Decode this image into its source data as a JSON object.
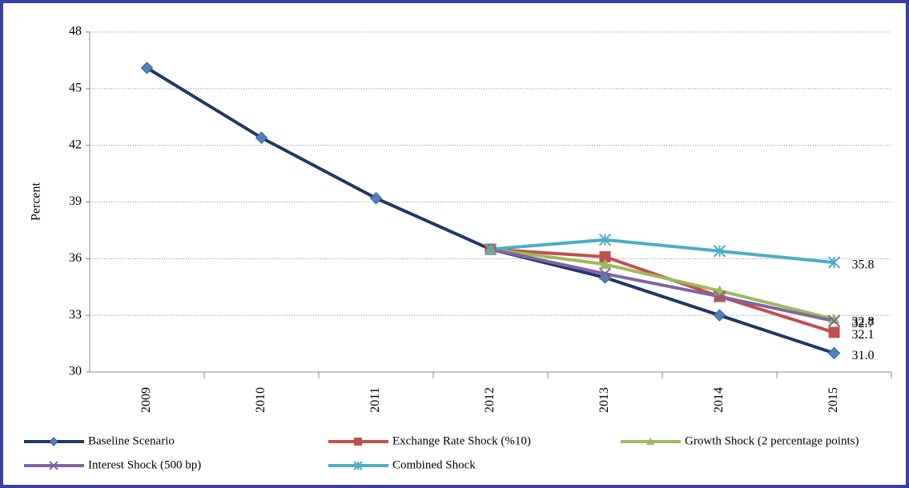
{
  "chart_data": {
    "type": "line",
    "y_label": "Percent",
    "categories": [
      "2009",
      "2010",
      "2011",
      "2012",
      "2013",
      "2014",
      "2015"
    ],
    "series": [
      {
        "name": "Baseline Scenario",
        "color": "#1f3864",
        "marker": "diamond",
        "values": [
          46.1,
          42.4,
          39.2,
          36.5,
          35.0,
          33.0,
          31.0
        ],
        "value_labels": [
          null,
          null,
          null,
          null,
          null,
          null,
          "31.0"
        ]
      },
      {
        "name": "Exchange Rate Shock (%10)",
        "color": "#c0504d",
        "marker": "square",
        "values": [
          null,
          null,
          null,
          36.5,
          36.1,
          34.0,
          32.1
        ],
        "value_labels": [
          null,
          null,
          null,
          null,
          null,
          null,
          "32.1"
        ]
      },
      {
        "name": "Growth Shock (2 percentage points)",
        "color": "#9bbb59",
        "marker": "triangle",
        "values": [
          null,
          null,
          null,
          36.5,
          35.7,
          34.3,
          32.8
        ],
        "value_labels": [
          null,
          null,
          null,
          null,
          null,
          null,
          "32.8"
        ]
      },
      {
        "name": "Interest Shock (500 bp)",
        "color": "#8064a2",
        "marker": "x",
        "values": [
          null,
          null,
          null,
          36.5,
          35.2,
          34.0,
          32.7
        ],
        "value_labels": [
          null,
          null,
          null,
          null,
          null,
          null,
          "32.7"
        ]
      },
      {
        "name": "Combined Shock",
        "color": "#4bacc6",
        "marker": "star",
        "values": [
          null,
          null,
          null,
          36.5,
          37.0,
          36.4,
          35.8
        ],
        "value_labels": [
          null,
          null,
          null,
          null,
          null,
          null,
          "35.8"
        ]
      }
    ],
    "ylim": [
      30,
      48
    ],
    "yticks": [
      30,
      33,
      36,
      39,
      42,
      45,
      48
    ],
    "grid": true,
    "legend": "bottom"
  }
}
